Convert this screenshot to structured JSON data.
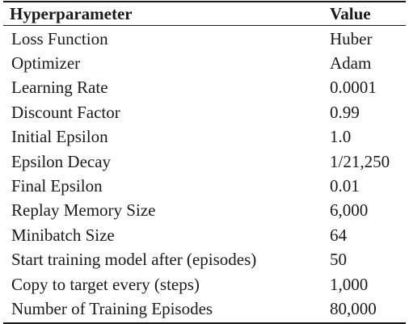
{
  "table": {
    "headers": {
      "param": "Hyperparameter",
      "value": "Value"
    },
    "rows": [
      {
        "param": "Loss Function",
        "value": "Huber"
      },
      {
        "param": "Optimizer",
        "value": "Adam"
      },
      {
        "param": "Learning Rate",
        "value": "0.0001"
      },
      {
        "param": "Discount Factor",
        "value": "0.99"
      },
      {
        "param": "Initial Epsilon",
        "value": "1.0"
      },
      {
        "param": "Epsilon Decay",
        "value": "1/21,250"
      },
      {
        "param": "Final Epsilon",
        "value": "0.01"
      },
      {
        "param": "Replay Memory Size",
        "value": "6,000"
      },
      {
        "param": "Minibatch Size",
        "value": "64"
      },
      {
        "param": "Start training model after (episodes)",
        "value": "50"
      },
      {
        "param": "Copy to target every (steps)",
        "value": "1,000"
      },
      {
        "param": "Number of Training Episodes",
        "value": "80,000"
      }
    ]
  }
}
